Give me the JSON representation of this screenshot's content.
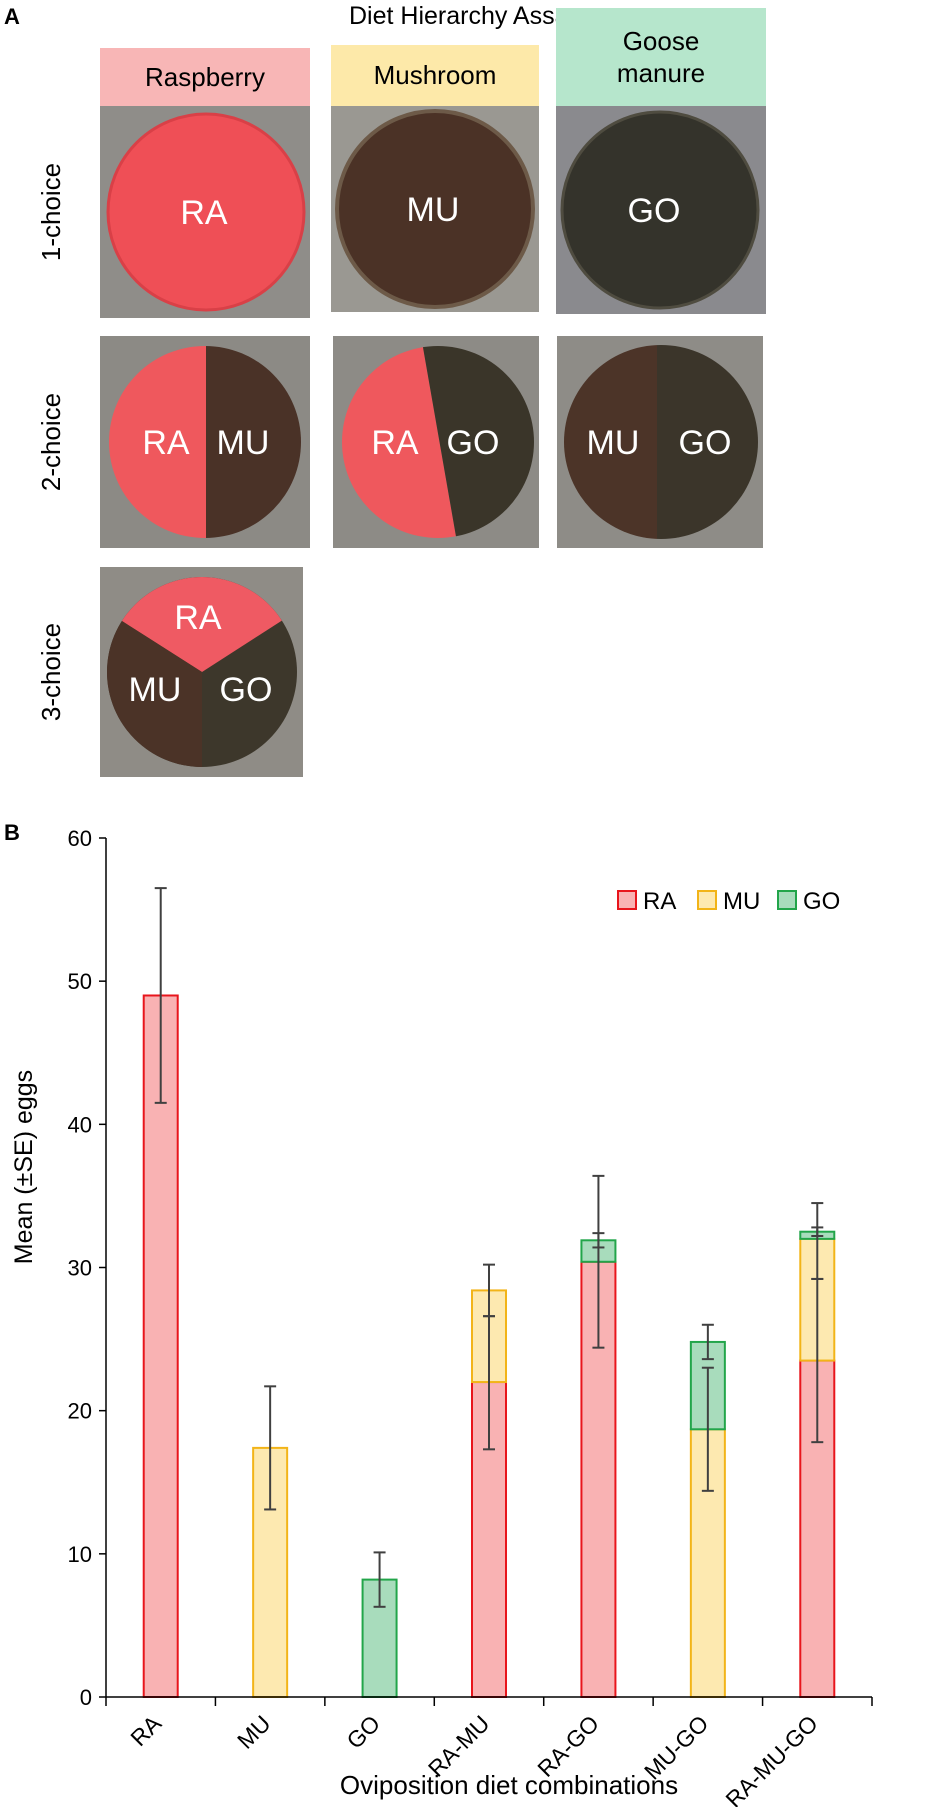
{
  "panel_a": {
    "letter": "A",
    "title": "Diet Hierarchy Assay",
    "columns": [
      {
        "label": "Raspberry",
        "color": "#f8b6b6"
      },
      {
        "label": "Mushroom",
        "color": "#fde9a9"
      },
      {
        "label": "Goose manure",
        "color": "#b6e6cc"
      }
    ],
    "rows": [
      "1-choice",
      "2-choice",
      "3-choice"
    ],
    "dish_labels": {
      "r1c1": "RA",
      "r1c2": "MU",
      "r1c3": "GO",
      "r2c1a": "RA",
      "r2c1b": "MU",
      "r2c2a": "RA",
      "r2c2b": "GO",
      "r2c3a": "MU",
      "r2c3b": "GO",
      "r3a": "RA",
      "r3b": "MU",
      "r3c": "GO"
    },
    "diet_colors": {
      "RA": "#f25a5e",
      "MU": "#4a3226",
      "GO": "#3b3a30"
    }
  },
  "panel_b": {
    "letter": "B"
  },
  "chart_data": {
    "type": "bar",
    "stacked": true,
    "categories": [
      "RA",
      "MU",
      "GO",
      "RA-MU",
      "RA-GO",
      "MU-GO",
      "RA-MU-GO"
    ],
    "series": [
      {
        "name": "RA",
        "fill": "#f9b2b3",
        "stroke": "#e8151c",
        "values": [
          49,
          0,
          0,
          22,
          30.4,
          0,
          23.5
        ]
      },
      {
        "name": "MU",
        "fill": "#fde9b0",
        "stroke": "#f2b418",
        "values": [
          0,
          17.4,
          0,
          6.4,
          0,
          18.7,
          8.5
        ]
      },
      {
        "name": "GO",
        "fill": "#a8dcbc",
        "stroke": "#22a54a",
        "values": [
          0,
          0,
          8.2,
          0,
          1.5,
          6.1,
          0.5
        ]
      }
    ],
    "error_bars": [
      {
        "category": "RA",
        "center": 49,
        "low": 41.5,
        "high": 56.5
      },
      {
        "category": "MU",
        "center": 17.4,
        "low": 13.1,
        "high": 21.7
      },
      {
        "category": "GO",
        "center": 8.2,
        "low": 6.3,
        "high": 10.1
      },
      {
        "category": "RA-MU",
        "center": 22,
        "low": 17.3,
        "high": 26.6
      },
      {
        "category": "RA-MU",
        "center": 28.4,
        "low": 26.6,
        "high": 30.2
      },
      {
        "category": "RA-GO",
        "center": 30.4,
        "low": 24.4,
        "high": 36.4
      },
      {
        "category": "RA-GO",
        "center": 31.9,
        "low": 31.4,
        "high": 32.4
      },
      {
        "category": "MU-GO",
        "center": 18.7,
        "low": 14.4,
        "high": 23
      },
      {
        "category": "MU-GO",
        "center": 24.8,
        "low": 23.6,
        "high": 26
      },
      {
        "category": "RA-MU-GO",
        "center": 23.5,
        "low": 17.8,
        "high": 29.2
      },
      {
        "category": "RA-MU-GO",
        "center": 32,
        "low": 29.2,
        "high": 34.5
      },
      {
        "category": "RA-MU-GO",
        "center": 32.5,
        "low": 32.2,
        "high": 32.8
      }
    ],
    "ylabel": "Mean (±SE) eggs",
    "xlabel": "Oviposition diet combinations",
    "ylim": [
      0,
      60
    ],
    "yticks": [
      0,
      10,
      20,
      30,
      40,
      50,
      60
    ],
    "legend": [
      "RA",
      "MU",
      "GO"
    ],
    "legend_position": "top-right",
    "grid": false
  }
}
